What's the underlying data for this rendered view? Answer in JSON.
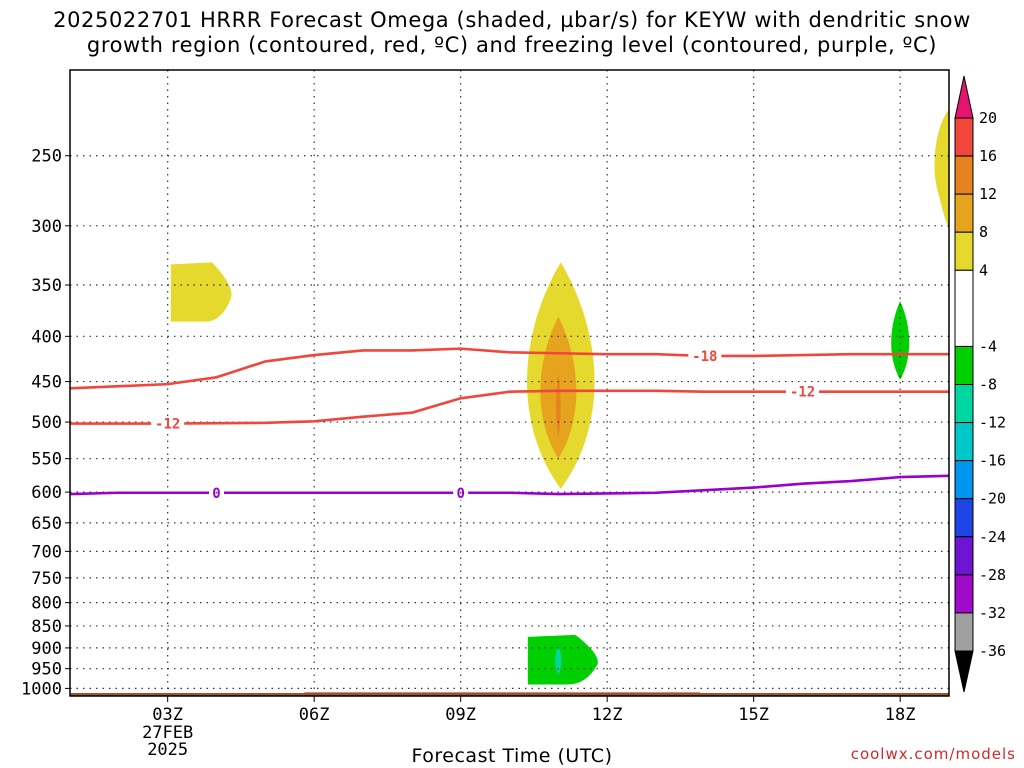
{
  "chart_data": {
    "type": "heatmap",
    "title_line1": "2025022701 HRRR Forecast Omega (shaded, µbar/s) for KEYW with dendritic snow",
    "title_line2": "growth region (contoured, red, ºC) and freezing level (contoured, purple, ºC)",
    "xlabel": "Forecast Time (UTC)",
    "x_range_hours": [
      1,
      19
    ],
    "x_ticks": [
      {
        "hour": 3,
        "label": "03Z",
        "sub": [
          "27FEB",
          "2025"
        ]
      },
      {
        "hour": 6,
        "label": "06Z",
        "sub": []
      },
      {
        "hour": 9,
        "label": "09Z",
        "sub": []
      },
      {
        "hour": 12,
        "label": "12Z",
        "sub": []
      },
      {
        "hour": 15,
        "label": "15Z",
        "sub": []
      },
      {
        "hour": 18,
        "label": "18Z",
        "sub": []
      }
    ],
    "y_axis": {
      "scale": "log",
      "unit": "hPa",
      "top": 200,
      "bottom": 1020
    },
    "y_ticks": [
      250,
      300,
      350,
      400,
      450,
      500,
      550,
      600,
      650,
      700,
      750,
      800,
      850,
      900,
      950,
      1000
    ],
    "grid": true,
    "contours": [
      {
        "name": "-18",
        "color": "#f0463c",
        "label": "-18",
        "label_at": 14.0,
        "points": [
          [
            1,
            458
          ],
          [
            3,
            453
          ],
          [
            4,
            445
          ],
          [
            5,
            427
          ],
          [
            6,
            420
          ],
          [
            7,
            415
          ],
          [
            8,
            415
          ],
          [
            9,
            413
          ],
          [
            10,
            417
          ],
          [
            11,
            418
          ],
          [
            12,
            419
          ],
          [
            13,
            419
          ],
          [
            14,
            421
          ],
          [
            15,
            421
          ],
          [
            16,
            420
          ],
          [
            17,
            419
          ],
          [
            18,
            419
          ],
          [
            19,
            419
          ]
        ]
      },
      {
        "name": "-12",
        "color": "#f0463c",
        "label": "-12",
        "label_at": 3.0,
        "points": [
          [
            1,
            502
          ],
          [
            2,
            502
          ],
          [
            3,
            502
          ],
          [
            5,
            501
          ],
          [
            6,
            499
          ],
          [
            7,
            493
          ],
          [
            8,
            488
          ],
          [
            9,
            470
          ],
          [
            10,
            462
          ],
          [
            11,
            461
          ],
          [
            12,
            461
          ],
          [
            13,
            461
          ],
          [
            14,
            462
          ],
          [
            15,
            462
          ],
          [
            16,
            462
          ],
          [
            17,
            462
          ],
          [
            18,
            462
          ],
          [
            19,
            462
          ]
        ]
      },
      {
        "name": "-12b",
        "color": "#f0463c",
        "label": "-12",
        "label_at": 16.0,
        "points": []
      },
      {
        "name": "0",
        "color": "#9900cc",
        "label": "0",
        "label_at": 4.0,
        "label2_at": 9.0,
        "points": [
          [
            1,
            603
          ],
          [
            2,
            601
          ],
          [
            3,
            601
          ],
          [
            4,
            601
          ],
          [
            6,
            601
          ],
          [
            8,
            601
          ],
          [
            9,
            601
          ],
          [
            10,
            601
          ],
          [
            11,
            603
          ],
          [
            12,
            602
          ],
          [
            13,
            601
          ],
          [
            14,
            597
          ],
          [
            15,
            593
          ],
          [
            16,
            587
          ],
          [
            17,
            583
          ],
          [
            18,
            577
          ],
          [
            19,
            575
          ]
        ]
      }
    ],
    "omega_regions": [
      {
        "category": "4 to 8",
        "color": "#e6d92e",
        "shape": "blob",
        "center": [
          3.5,
          355
        ],
        "hours": [
          3.0,
          4.3
        ],
        "hpa": [
          330,
          385
        ]
      },
      {
        "category": "4 to 8",
        "color": "#e6d92e",
        "shape": "lens",
        "center": [
          11.0,
          460
        ],
        "hours": [
          10.3,
          11.8
        ],
        "hpa": [
          330,
          595
        ]
      },
      {
        "category": "8 to 12",
        "color": "#e6a41e",
        "shape": "lens",
        "center": [
          11.0,
          460
        ],
        "hours": [
          10.6,
          11.4
        ],
        "hpa": [
          380,
          550
        ]
      },
      {
        "category": "12 to 16",
        "color": "#e8821e",
        "shape": "lens",
        "center": [
          11.0,
          480
        ],
        "hours": [
          10.95,
          11.05
        ],
        "hpa": [
          440,
          520
        ]
      },
      {
        "category": "4 to 8",
        "color": "#e6d92e",
        "shape": "edge",
        "center": [
          19.0,
          260
        ],
        "hours": [
          18.7,
          19.0
        ],
        "hpa": [
          220,
          305
        ]
      },
      {
        "category": "-8 to -4",
        "color": "#00d000",
        "shape": "lens",
        "center": [
          18.0,
          405
        ],
        "hours": [
          17.8,
          18.2
        ],
        "hpa": [
          365,
          448
        ]
      },
      {
        "category": "-8 to -4",
        "color": "#00d000",
        "shape": "blob",
        "center": [
          11.0,
          925
        ],
        "hours": [
          10.3,
          11.8
        ],
        "hpa": [
          870,
          990
        ]
      },
      {
        "category": "-12 to -8",
        "color": "#00d7a0",
        "shape": "lens",
        "center": [
          11.0,
          925
        ],
        "hours": [
          10.93,
          11.07
        ],
        "hpa": [
          895,
          965
        ]
      }
    ],
    "terrain": {
      "color": "#a0522d",
      "label": "surface"
    },
    "colorbar": {
      "labels": [
        "20",
        "16",
        "12",
        "8",
        "4",
        "-4",
        "-8",
        "-12",
        "-16",
        "-20",
        "-24",
        "-28",
        "-32",
        "-36"
      ],
      "segments": [
        {
          "from": 16,
          "to": 20,
          "color": "#f0463c"
        },
        {
          "from": 12,
          "to": 16,
          "color": "#e8821e"
        },
        {
          "from": 8,
          "to": 12,
          "color": "#e6a41e"
        },
        {
          "from": 4,
          "to": 8,
          "color": "#e6d92e"
        },
        {
          "from": -4,
          "to": 4,
          "color": "#ffffff"
        },
        {
          "from": -8,
          "to": -4,
          "color": "#00d000"
        },
        {
          "from": -12,
          "to": -8,
          "color": "#00d7a0"
        },
        {
          "from": -16,
          "to": -12,
          "color": "#00c8c8"
        },
        {
          "from": -20,
          "to": -16,
          "color": "#0096f0"
        },
        {
          "from": -24,
          "to": -20,
          "color": "#1e46e6"
        },
        {
          "from": -28,
          "to": -24,
          "color": "#6e14d2"
        },
        {
          "from": -32,
          "to": -28,
          "color": "#a00ac8"
        },
        {
          "from": -36,
          "to": -32,
          "color": "#a0a0a0"
        }
      ],
      "top_arrow_color": "#e6146e",
      "bottom_arrow_color": "#000000"
    }
  },
  "credit": "coolwx.com/models"
}
